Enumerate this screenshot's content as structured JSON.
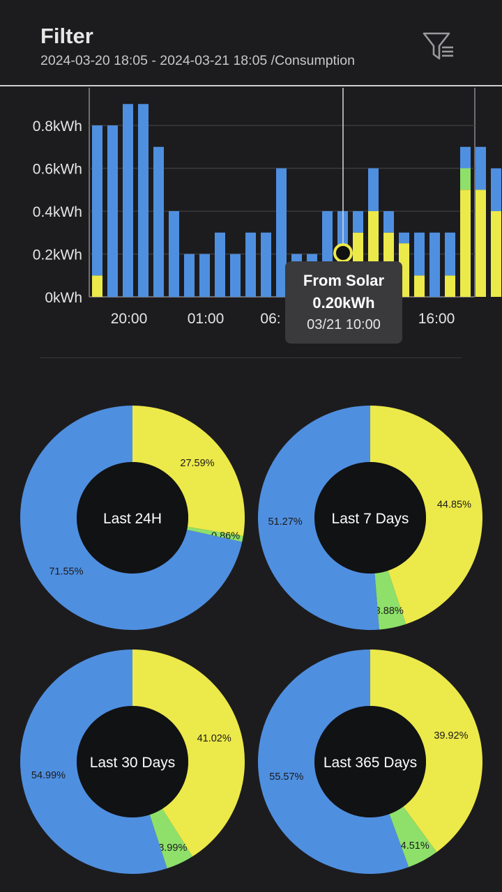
{
  "header": {
    "title": "Filter",
    "subtitle": "2024-03-20 18:05 - 2024-03-21 18:05 /Consumption",
    "filter_icon": "filter-list-icon"
  },
  "colors": {
    "background": "#1c1c1e",
    "grid": "#3a3a3c",
    "grid_axis": "#8a8a8e",
    "grid_strong": "#b0b0b4",
    "solar": "#ece94a",
    "battery": "#8ee06a",
    "grid_source": "#4f8fe0",
    "tooltip_bg": "#3a3a3c"
  },
  "tooltip": {
    "title": "From Solar",
    "value": "0.20kWh",
    "time": "03/21 10:00"
  },
  "chart_data": [
    {
      "type": "bar",
      "stacked": true,
      "ylabel_unit": "kWh",
      "ylim": [
        0,
        0.9
      ],
      "y_ticks": [
        "0kWh",
        "0.2kWh",
        "0.4kWh",
        "0.6kWh",
        "0.8kWh"
      ],
      "x_tick_labels": [
        "20:00",
        "01:00",
        "06:",
        "16:00"
      ],
      "selected_index": 16,
      "series": [
        {
          "values": [
            0.1,
            0,
            0,
            0,
            0,
            0,
            0,
            0,
            0,
            0,
            0,
            0,
            0,
            0,
            0,
            0.05,
            0.2,
            0.3,
            0.4,
            0.3,
            0.25,
            0.1,
            0,
            0.1,
            0.5,
            0.5,
            0.4
          ]
        },
        {
          "values": [
            0,
            0,
            0,
            0,
            0,
            0,
            0,
            0,
            0,
            0,
            0,
            0,
            0,
            0,
            0,
            0,
            0,
            0,
            0,
            0,
            0,
            0,
            0,
            0,
            0.1,
            0,
            0
          ]
        },
        {
          "values": [
            0.7,
            0.8,
            0.9,
            0.9,
            0.7,
            0.4,
            0.2,
            0.2,
            0.3,
            0.2,
            0.3,
            0.3,
            0.6,
            0.2,
            0.2,
            0.35,
            0.2,
            0.1,
            0.2,
            0.1,
            0.05,
            0.2,
            0.3,
            0.2,
            0.1,
            0.2,
            0.2
          ]
        }
      ]
    },
    {
      "type": "pie",
      "donut": true,
      "center_label": "Last 24H",
      "slices": [
        {
          "value": 27.59,
          "label": "27.59%",
          "color": "#ece94a"
        },
        {
          "value": 0.86,
          "label": "0.86%",
          "color": "#8ee06a"
        },
        {
          "value": 71.55,
          "label": "71.55%",
          "color": "#4f8fe0"
        }
      ]
    },
    {
      "type": "pie",
      "donut": true,
      "center_label": "Last 7 Days",
      "slices": [
        {
          "value": 44.85,
          "label": "44.85%",
          "color": "#ece94a"
        },
        {
          "value": 3.88,
          "label": "3.88%",
          "color": "#8ee06a"
        },
        {
          "value": 51.27,
          "label": "51.27%",
          "color": "#4f8fe0"
        }
      ]
    },
    {
      "type": "pie",
      "donut": true,
      "center_label": "Last 30 Days",
      "slices": [
        {
          "value": 41.02,
          "label": "41.02%",
          "color": "#ece94a"
        },
        {
          "value": 3.99,
          "label": "3.99%",
          "color": "#8ee06a"
        },
        {
          "value": 54.99,
          "label": "54.99%",
          "color": "#4f8fe0"
        }
      ]
    },
    {
      "type": "pie",
      "donut": true,
      "center_label": "Last 365 Days",
      "slices": [
        {
          "value": 39.92,
          "label": "39.92%",
          "color": "#ece94a"
        },
        {
          "value": 4.51,
          "label": "4.51%",
          "color": "#8ee06a"
        },
        {
          "value": 55.57,
          "label": "55.57%",
          "color": "#4f8fe0"
        }
      ]
    }
  ]
}
